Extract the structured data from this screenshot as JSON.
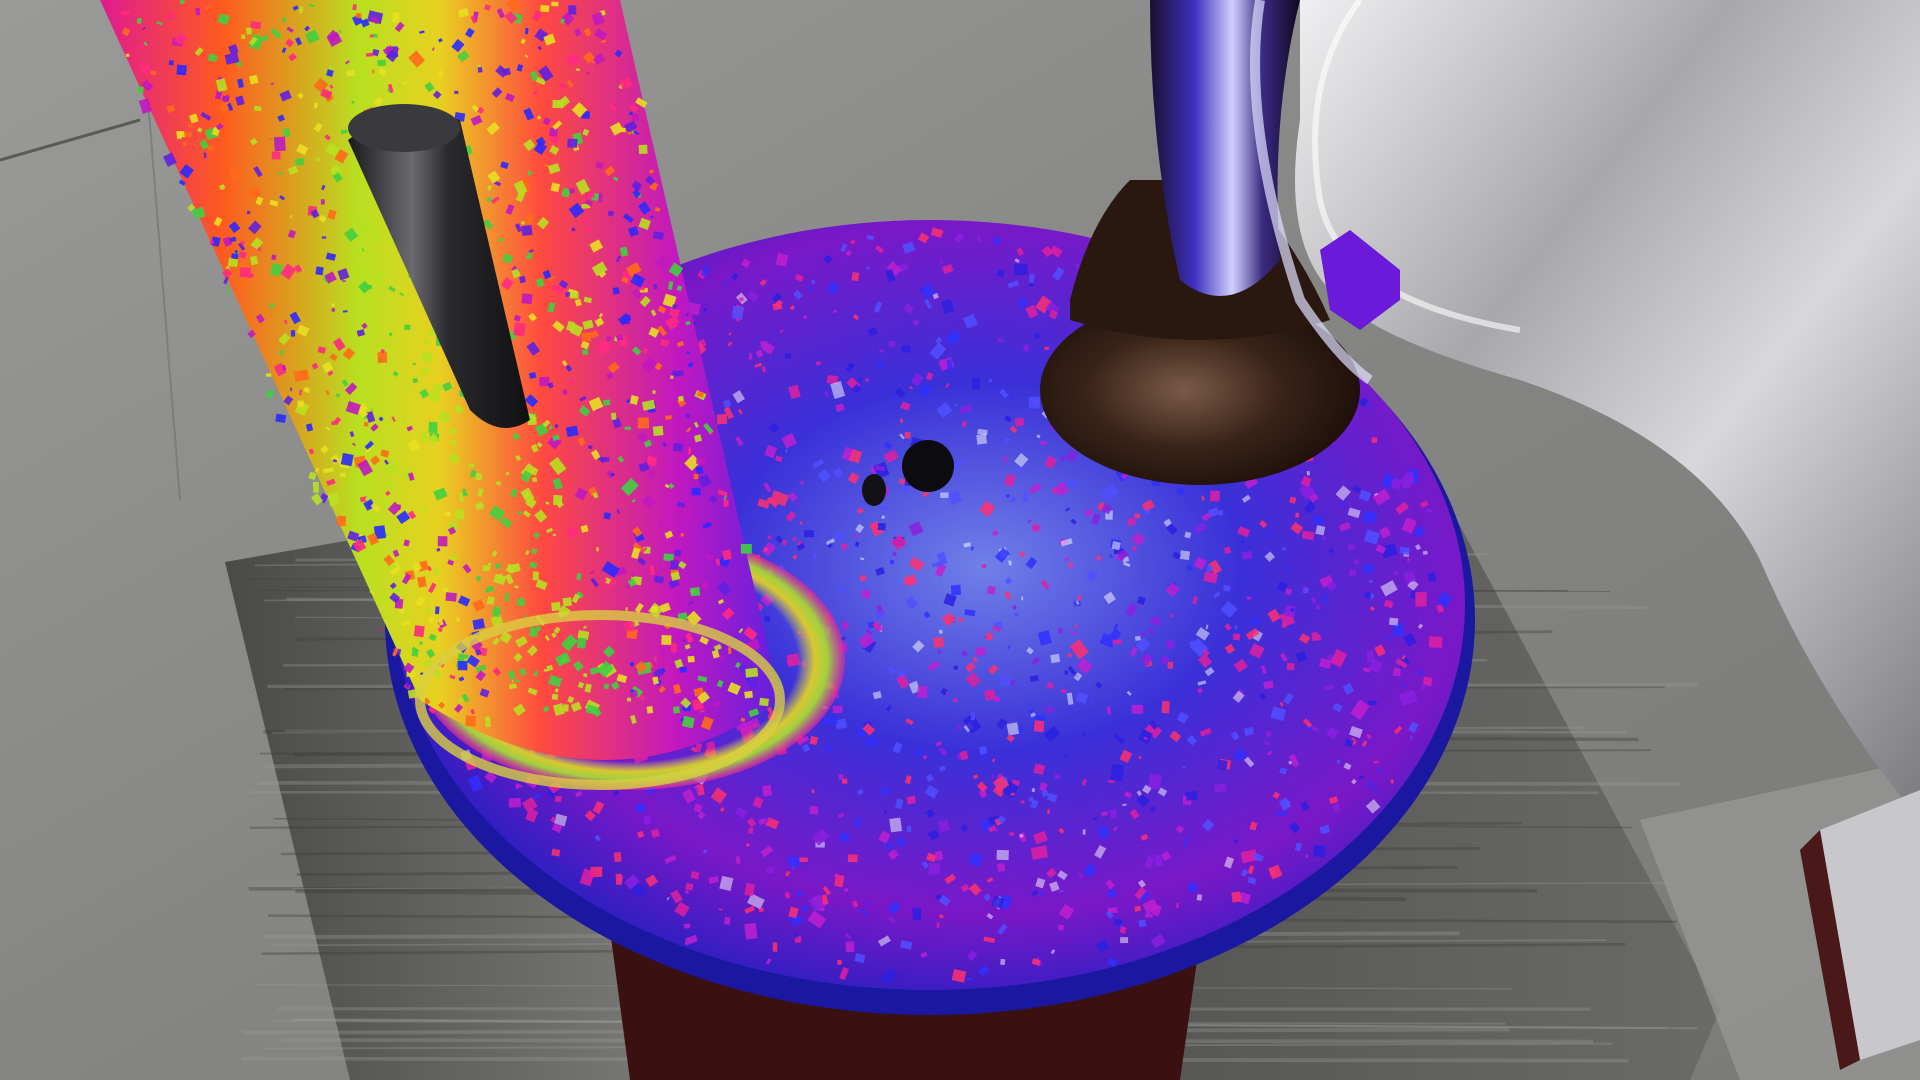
{
  "scene": {
    "description_visible_text": "",
    "colors": {
      "floor": "#8c8c8a",
      "floor_dark": "#6e6e6c",
      "platform": "#5a5a58",
      "pedestal": "#3a1010",
      "disc_blue": "#2a2ad8",
      "disc_violet": "#8a1ad0",
      "magenta": "#e01aa0",
      "orange": "#ff6a1a",
      "yellow_green": "#b8e020",
      "green": "#40d040",
      "chrome": "#c8c8cc",
      "chocolate": "#3a2418",
      "rod": "#2a2a2c"
    }
  }
}
